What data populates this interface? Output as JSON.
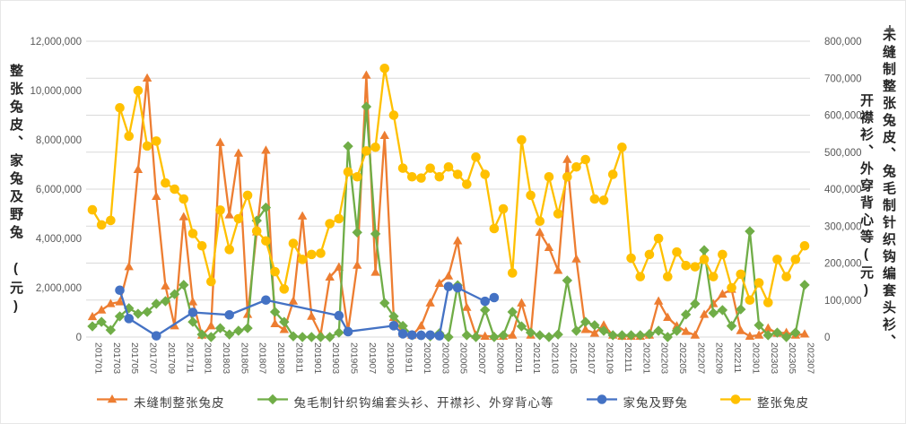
{
  "chart_data": {
    "type": "line",
    "title": "",
    "grid": "horizontal gridlines every 100,000 (right axis scale)",
    "legend_position": "bottom",
    "months": [
      "201701",
      "201702",
      "201703",
      "201704",
      "201705",
      "201706",
      "201707",
      "201708",
      "201709",
      "201710",
      "201711",
      "201712",
      "201801",
      "201802",
      "201803",
      "201804",
      "201805",
      "201806",
      "201807",
      "201808",
      "201809",
      "201810",
      "201811",
      "201812",
      "201901",
      "201902",
      "201903",
      "201904",
      "201905",
      "201906",
      "201907",
      "201908",
      "201909",
      "201910",
      "201911",
      "201912",
      "202001",
      "202002",
      "202003",
      "202004",
      "202005",
      "202006",
      "202007",
      "202008",
      "202009",
      "202010",
      "202011",
      "202012",
      "202101",
      "202102",
      "202103",
      "202104",
      "202105",
      "202106",
      "202107",
      "202108",
      "202109",
      "202110",
      "202111",
      "202112",
      "202201",
      "202202",
      "202203",
      "202204",
      "202205",
      "202206",
      "202207",
      "202208",
      "202209",
      "202210",
      "202211",
      "202212",
      "202301",
      "202302",
      "202303",
      "202304",
      "202305",
      "202306",
      "202307"
    ],
    "x_tick_labels": [
      "201701",
      "201703",
      "201705",
      "201707",
      "201709",
      "201711",
      "201801",
      "201803",
      "201805",
      "201807",
      "201809",
      "201811",
      "201901",
      "201903",
      "201905",
      "201907",
      "201909",
      "201911",
      "202001",
      "202003",
      "202005",
      "202007",
      "202009",
      "202011",
      "202101",
      "202103",
      "202105",
      "202107",
      "202109",
      "202111",
      "202201",
      "202203",
      "202205",
      "202207",
      "202209",
      "202211",
      "202301",
      "202303",
      "202305",
      "202307"
    ],
    "left_axis": {
      "title": "整张兔皮、家兔及野兔　(元)",
      "min": 0,
      "max": 12000000,
      "step": 2000000,
      "tick_labels": [
        "0",
        "2,000,000",
        "4,000,000",
        "6,000,000",
        "8,000,000",
        "10,000,000",
        "12,000,000"
      ]
    },
    "right_axis": {
      "title": "未缝制整张兔皮、兔毛制针织钩编套头衫、开襟衫、外穿背心等(元)",
      "title_lines": [
        "未缝制整张兔皮、兔毛制针织钩编套头衫、",
        "开襟衫、外穿背心等(元)"
      ],
      "min": 0,
      "max": 800000,
      "step": 100000,
      "tick_labels": [
        "0",
        "100,000",
        "200,000",
        "300,000",
        "400,000",
        "500,000",
        "600,000",
        "700,000",
        "800,000"
      ]
    },
    "colors": {
      "grid": "#D9D9D9",
      "tick_text": "#595959",
      "axis_title_text": "#262626"
    },
    "series": [
      {
        "id": "unsewn-whole-rabbit-skin",
        "name": "未缝制整张兔皮",
        "axis": "right",
        "color": "#ED7D31",
        "marker": "triangle",
        "values": [
          55000,
          73000,
          90000,
          95000,
          190000,
          453000,
          700000,
          380000,
          138000,
          30000,
          325000,
          95000,
          5000,
          30000,
          526000,
          330000,
          497000,
          61000,
          284000,
          505000,
          36000,
          20000,
          97000,
          327000,
          56000,
          7000,
          162000,
          189000,
          17000,
          194000,
          708000,
          175000,
          545000,
          53000,
          10000,
          5000,
          30000,
          92000,
          145000,
          165000,
          260000,
          80000,
          5000,
          2000,
          2000,
          2000,
          5000,
          92000,
          5000,
          283000,
          242000,
          180000,
          480000,
          211000,
          20000,
          10000,
          32000,
          5000,
          2000,
          2000,
          2000,
          5000,
          97000,
          53000,
          30000,
          15000,
          5000,
          61000,
          90000,
          116000,
          129000,
          17000,
          2000,
          5000,
          24000,
          10000,
          12000,
          5000,
          8000
        ]
      },
      {
        "id": "knitted-pullover-cardigan-vest",
        "name": "兔毛制针织钩编套头衫、开襟衫、外穿背心等",
        "axis": "right",
        "color": "#70AD47",
        "marker": "diamond",
        "values": [
          29000,
          41000,
          19000,
          56000,
          78000,
          63000,
          68000,
          90000,
          97000,
          116000,
          141000,
          41000,
          7000,
          0,
          24000,
          7000,
          17000,
          24000,
          315000,
          350000,
          68000,
          41000,
          2000,
          0,
          0,
          0,
          0,
          12000,
          516000,
          283000,
          623000,
          279000,
          92000,
          56000,
          30000,
          5000,
          5000,
          2000,
          10000,
          0,
          140000,
          5000,
          0,
          73000,
          0,
          5000,
          68000,
          29000,
          12000,
          5000,
          0,
          7000,
          153000,
          17000,
          41000,
          32000,
          17000,
          5000,
          5000,
          5000,
          5000,
          8000,
          17000,
          0,
          17000,
          61000,
          90000,
          235000,
          65000,
          73000,
          30000,
          75000,
          286000,
          32000,
          5000,
          12000,
          0,
          12000,
          141000
        ]
      },
      {
        "id": "domestic-and-wild-rabbit",
        "name": "家兔及野兔",
        "axis": "left",
        "color": "#4472C4",
        "marker": "circle",
        "values": [
          null,
          null,
          null,
          1900000,
          750000,
          null,
          null,
          50000,
          null,
          null,
          null,
          1000000,
          null,
          null,
          null,
          900000,
          null,
          null,
          null,
          1500000,
          null,
          null,
          null,
          null,
          null,
          null,
          null,
          870000,
          220000,
          null,
          null,
          null,
          null,
          460000,
          130000,
          80000,
          70000,
          80000,
          50000,
          2050000,
          2000000,
          null,
          null,
          1450000,
          1600000,
          null,
          null,
          null,
          null,
          null,
          null,
          null,
          null,
          null,
          null,
          null,
          null,
          null,
          null,
          null,
          null,
          null,
          null,
          null,
          null,
          null,
          null,
          null,
          null,
          null,
          null,
          null,
          null,
          null,
          null,
          null,
          null,
          null,
          null
        ]
      },
      {
        "id": "whole-rabbit-skin",
        "name": "整张兔皮",
        "axis": "left",
        "color": "#FFC000",
        "marker": "circle",
        "values": [
          5160000,
          4550000,
          4730000,
          9300000,
          8150000,
          10000000,
          7750000,
          7950000,
          6250000,
          6000000,
          5600000,
          4200000,
          3700000,
          2250000,
          5150000,
          3550000,
          4800000,
          5750000,
          4300000,
          3900000,
          2650000,
          1950000,
          3800000,
          3150000,
          3350000,
          3400000,
          4600000,
          4800000,
          6700000,
          6500000,
          7550000,
          7700000,
          10900000,
          9000000,
          6850000,
          6500000,
          6450000,
          6850000,
          6500000,
          6900000,
          6600000,
          6200000,
          7300000,
          6600000,
          4400000,
          5200000,
          2600000,
          8000000,
          5750000,
          4700000,
          6500000,
          5000000,
          6500000,
          6900000,
          7200000,
          5600000,
          5550000,
          6600000,
          7700000,
          3200000,
          2450000,
          3350000,
          4000000,
          2450000,
          3450000,
          2900000,
          2850000,
          3150000,
          2450000,
          3350000,
          2000000,
          2550000,
          1500000,
          2200000,
          1400000,
          3150000,
          2450000,
          3150000,
          3700000
        ]
      }
    ]
  },
  "corner": {
    "plus": "+"
  }
}
